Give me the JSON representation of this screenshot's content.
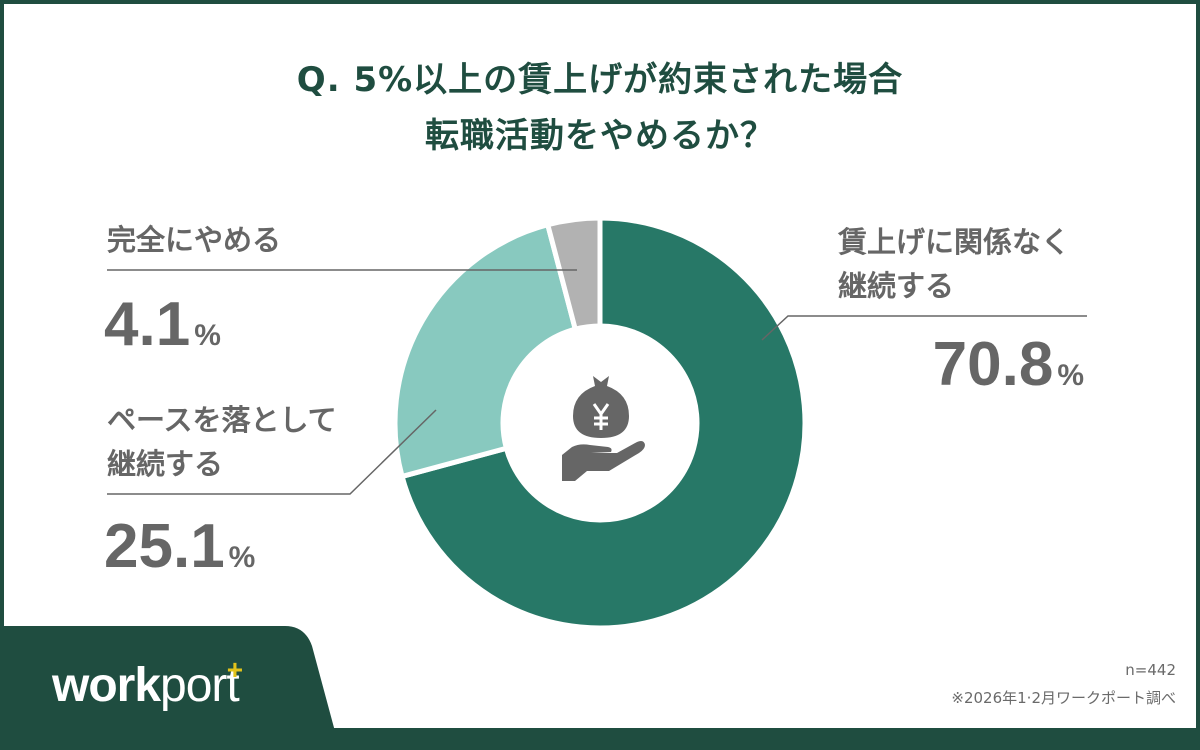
{
  "title": {
    "line1": "Q. 5%以上の賃上げが約束された場合",
    "line2": "転職活動をやめるか？"
  },
  "labels": {
    "quit": {
      "text": "完全にやめる",
      "value": "4.1",
      "unit": "%"
    },
    "slow": {
      "line1": "ペースを落として",
      "line2": "継続する",
      "value": "25.1",
      "unit": "%"
    },
    "continue": {
      "line1": "賃上げに関係なく",
      "line2": "継続する",
      "value": "70.8",
      "unit": "%"
    }
  },
  "center_icon": "money-bag-yen-hand-icon",
  "footer": {
    "logo_bold": "work",
    "logo_light": "port",
    "logo_plus": "+",
    "sample": "n=442",
    "source": "※2026年1·2月ワークポート調べ"
  },
  "colors": {
    "brand_dark": "#1f4d40",
    "continue": "#277867",
    "slow": "#88c9bf",
    "quit": "#b2b2b2",
    "text_gray": "#666666",
    "logo_accent": "#e2c31b"
  },
  "chart_data": {
    "type": "pie",
    "variant": "donut",
    "title": "Q. 5%以上の賃上げが約束された場合 転職活動をやめるか？",
    "categories": [
      "賃上げに関係なく継続する",
      "ペースを落として継続する",
      "完全にやめる"
    ],
    "values": [
      70.8,
      25.1,
      4.1
    ],
    "unit": "%",
    "colors": [
      "#277867",
      "#88c9bf",
      "#b2b2b2"
    ],
    "start_angle": "12 o'clock, clockwise",
    "n": 442,
    "source": "※2026年1·2月ワークポート調べ"
  }
}
